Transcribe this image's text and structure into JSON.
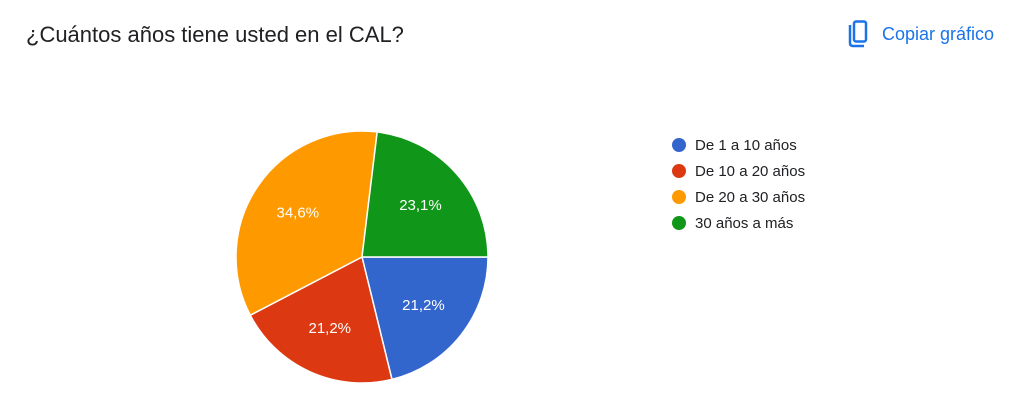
{
  "header": {
    "title": "¿Cuántos años tiene usted en el CAL?",
    "copy_label": "Copiar gráfico",
    "copy_icon": "copy-icon"
  },
  "chart_data": {
    "type": "pie",
    "title": "¿Cuántos años tiene usted en el CAL?",
    "categories": [
      "De 1 a 10 años",
      "De 10 a 20 años",
      "De 20 a 30 años",
      "30 años a más"
    ],
    "values": [
      21.2,
      21.2,
      34.6,
      23.1
    ],
    "labels": [
      "21,2%",
      "21,2%",
      "34,6%",
      "23,1%"
    ],
    "colors": [
      "#3366cc",
      "#dc3912",
      "#ff9900",
      "#109618"
    ],
    "legend_position": "right"
  }
}
